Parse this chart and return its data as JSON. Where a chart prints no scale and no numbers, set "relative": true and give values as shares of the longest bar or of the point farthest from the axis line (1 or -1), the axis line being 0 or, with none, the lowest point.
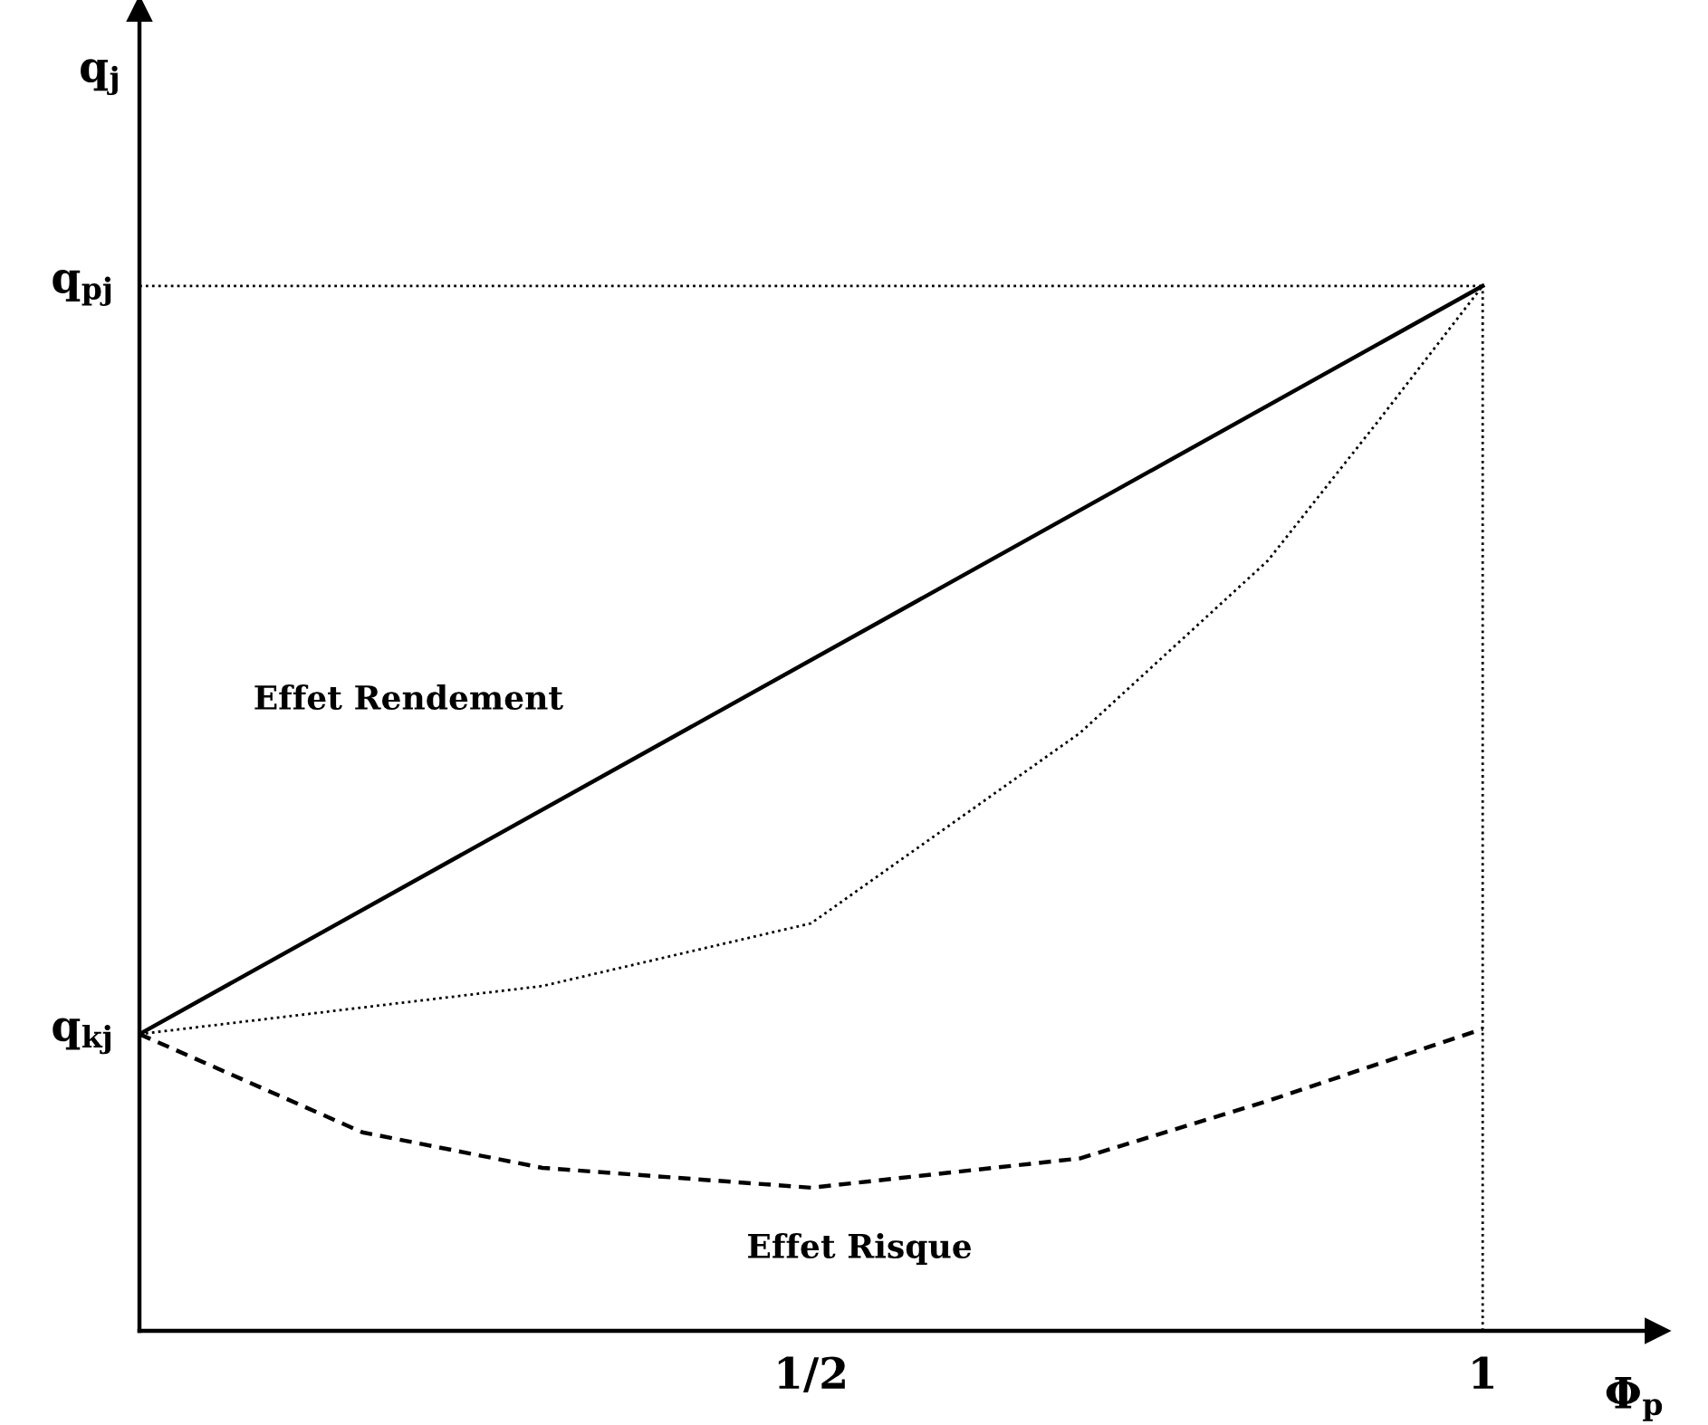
{
  "chart_data": {
    "type": "line",
    "relative": true,
    "xlabel": "Φ$_{p}$",
    "ylabel": "q$_{j}$",
    "xlim": [
      0,
      1.13
    ],
    "xticks": [
      {
        "value": 0.5,
        "label": "1/2"
      },
      1
    ],
    "grid": false,
    "marker": "none",
    "series": [
      {
        "color": "#000000",
        "line_style": "solid",
        "x": [
          0,
          1
        ],
        "values": [
          0.284,
          1
        ]
      },
      {
        "color": "#000000",
        "line_style": "dotted",
        "x": [
          0,
          0.3,
          0.5,
          0.7,
          0.84,
          0.92,
          1
        ],
        "values": [
          0.284,
          0.33,
          0.39,
          0.572,
          0.737,
          0.867,
          1
        ]
      },
      {
        "color": "#000000",
        "line_style": "dashed",
        "x": [
          0,
          0.166,
          0.3,
          0.5,
          0.7,
          0.84,
          1
        ],
        "values": [
          0.284,
          0.19,
          0.156,
          0.137,
          0.165,
          0.22,
          0.289
        ]
      },
      {
        "color": "#000000",
        "line_style": "dotted",
        "x": [
          0,
          1
        ],
        "values": [
          1,
          1
        ]
      },
      {
        "color": "#000000",
        "line_style": "dotted",
        "x": [
          1,
          1
        ],
        "values": [
          0,
          1
        ]
      }
    ],
    "annotations": [
      {
        "text": "q$_{kj}$",
        "x": 0,
        "y": 0.284
      },
      {
        "text": "q$_{pj}$",
        "x": 0,
        "y": 1
      },
      "Effet Rendement",
      "Effet Risque"
    ]
  }
}
